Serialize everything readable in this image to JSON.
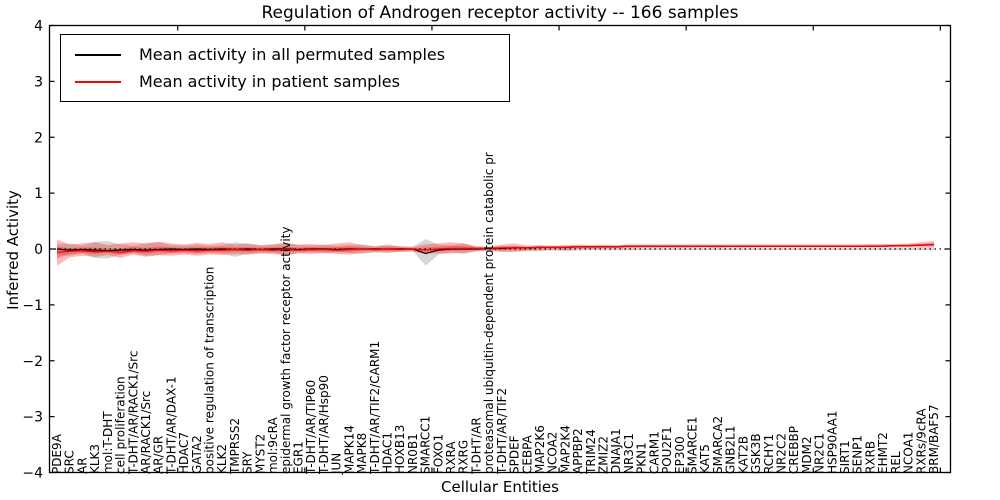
{
  "figure": {
    "title": "Regulation of Androgen receptor activity -- 166 samples",
    "xlabel": "Cellular Entities",
    "ylabel": "Inferred Activity"
  },
  "legend": {
    "items": [
      {
        "label": "Mean activity in all permuted samples",
        "color": "#000000"
      },
      {
        "label": "Mean activity in patient samples",
        "color": "#ff0000"
      }
    ]
  },
  "chart_data": {
    "type": "line",
    "title": "Regulation of Androgen receptor activity -- 166 samples",
    "xlabel": "Cellular Entities",
    "ylabel": "Inferred Activity",
    "ylim": [
      -4,
      4
    ],
    "ytick_values": [
      4,
      3,
      2,
      1,
      0,
      -1,
      -2,
      -3,
      -4
    ],
    "ytick_labels": [
      "4",
      "3",
      "2",
      "1",
      "0",
      "−1",
      "−2",
      "−3",
      "−4"
    ],
    "grid": false,
    "legend_position": "upper left",
    "zero_line": {
      "y": 0,
      "style": "dotted",
      "color": "#000000"
    },
    "categories": [
      "PDE9A",
      "SRC",
      "AR",
      "KLK3",
      "mol:T-DHT",
      "cell proliferation",
      "T-DHT/AR/RACK1/Src",
      "AR/RACK1/Src",
      "AR/GR",
      "T-DHT/AR/DAX-1",
      "HDAC7",
      "GATA2",
      "positive regulation of transcription",
      "KLK2",
      "TMPRSS2",
      "SRY",
      "MYST2",
      "mol:9cRA",
      "epidermal growth factor receptor activity",
      "EGR1",
      "T-DHT/AR/TIP60",
      "T-DHT/AR/Hsp90",
      "JUN",
      "MAPK14",
      "MAPK8",
      "T-DHT/AR/TIF2/CARM1",
      "HDAC1",
      "HOXB13",
      "NR0B1",
      "SMARCC1",
      "FOXO1",
      "RXRA",
      "RXRG",
      "T-DHT/AR",
      "proteasomal ubiquitin-dependent protein catabolic pr",
      "T-DHT/AR/TIF2",
      "SPDEF",
      "CEBPA",
      "MAP2K6",
      "NCOA2",
      "MAP2K4",
      "APPBP2",
      "TRIM24",
      "ZMIZ2",
      "DNAJA1",
      "NR3C1",
      "PKN1",
      "CARM1",
      "POU2F1",
      "EP300",
      "SMARCE1",
      "KAT5",
      "SMARCA2",
      "GNB2L1",
      "KAT2B",
      "GSK3B",
      "RCHY1",
      "NR2C2",
      "CREBBP",
      "MDM2",
      "NR2C1",
      "HSP90AA1",
      "SIRT1",
      "SENP1",
      "RXRB",
      "EHMT2",
      "REL",
      "NCOA1",
      "RXRs/9cRA",
      "BRM/BAF57"
    ],
    "series": [
      {
        "name": "Mean activity in all permuted samples",
        "color": "#000000",
        "style": "solid",
        "values": [
          0,
          -0.02,
          -0.01,
          -0.02,
          -0.03,
          -0.02,
          -0.01,
          -0.02,
          -0.01,
          0,
          -0.01,
          0,
          -0.01,
          0,
          -0.01,
          0,
          -0.01,
          0,
          0,
          -0.01,
          0,
          0,
          -0.01,
          0,
          0,
          0,
          0,
          0,
          0,
          -0.08,
          -0.02,
          0,
          0,
          0,
          0.01,
          0.01,
          0.02,
          0.02,
          0.03,
          0.03,
          0.03,
          0.04,
          0.04,
          0.04,
          0.04,
          0.05,
          0.05,
          0.05,
          0.05,
          0.05,
          0.05,
          0.05,
          0.05,
          0.05,
          0.05,
          0.05,
          0.05,
          0.05,
          0.05,
          0.05,
          0.05,
          0.05,
          0.05,
          0.05,
          0.05,
          0.05,
          0.06,
          0.06,
          0.07,
          0.08
        ]
      },
      {
        "name": "Mean activity in patient samples",
        "color": "#ff0000",
        "style": "solid",
        "values": [
          -0.06,
          -0.04,
          -0.03,
          -0.05,
          -0.04,
          -0.06,
          -0.03,
          -0.04,
          -0.02,
          -0.03,
          -0.02,
          -0.03,
          -0.02,
          -0.02,
          -0.01,
          -0.02,
          -0.01,
          -0.02,
          -0.01,
          -0.02,
          -0.01,
          -0.01,
          -0.02,
          -0.01,
          0,
          -0.01,
          0,
          -0.01,
          0,
          -0.02,
          0,
          0.01,
          0.01,
          0.01,
          0.01,
          0.02,
          0.02,
          0.02,
          0.03,
          0.03,
          0.03,
          0.04,
          0.04,
          0.04,
          0.04,
          0.05,
          0.05,
          0.05,
          0.05,
          0.05,
          0.05,
          0.05,
          0.05,
          0.05,
          0.05,
          0.05,
          0.05,
          0.05,
          0.05,
          0.05,
          0.05,
          0.05,
          0.05,
          0.05,
          0.05,
          0.05,
          0.06,
          0.06,
          0.07,
          0.08
        ]
      }
    ],
    "bands": [
      {
        "name": "permuted samples std band",
        "color": "#808080",
        "opacity": 0.32,
        "upper": [
          0.08,
          0.1,
          0.06,
          0.13,
          0.14,
          0.08,
          0.06,
          0.1,
          0.12,
          0.07,
          0.06,
          0.08,
          0.06,
          0.07,
          0.12,
          0.09,
          0.06,
          0.07,
          0.11,
          0.07,
          0.06,
          0.08,
          0.06,
          0.07,
          0.08,
          0.05,
          0.06,
          0.05,
          0.04,
          0.18,
          0.08,
          0.06,
          0.1,
          0.04,
          0.04,
          0.05,
          0.05,
          0.04,
          0.04,
          0.03,
          0.04,
          0.03,
          0.03,
          0.04,
          0.03,
          0.03,
          0.03,
          0.03,
          0.02,
          0.03,
          0.02,
          0.02,
          0.03,
          0.02,
          0.02,
          0.02,
          0.02,
          0.02,
          0.02,
          0.02,
          0.02,
          0.02,
          0.02,
          0.02,
          0.02,
          0.02,
          0.02,
          0.02,
          0.03,
          0.03
        ],
        "lower": [
          -0.1,
          -0.12,
          -0.08,
          -0.16,
          -0.17,
          -0.1,
          -0.08,
          -0.12,
          -0.11,
          -0.08,
          -0.07,
          -0.09,
          -0.07,
          -0.08,
          -0.14,
          -0.09,
          -0.07,
          -0.07,
          -0.12,
          -0.07,
          -0.06,
          -0.08,
          -0.06,
          -0.07,
          -0.09,
          -0.05,
          -0.06,
          -0.05,
          -0.04,
          -0.3,
          -0.1,
          -0.06,
          -0.09,
          -0.04,
          -0.04,
          -0.05,
          -0.05,
          -0.04,
          -0.04,
          -0.03,
          -0.04,
          -0.03,
          -0.02,
          -0.03,
          -0.02,
          -0.03,
          -0.02,
          -0.02,
          -0.02,
          -0.02,
          -0.02,
          -0.02,
          -0.02,
          -0.02,
          -0.02,
          -0.02,
          -0.02,
          -0.02,
          -0.02,
          -0.02,
          -0.02,
          -0.02,
          -0.02,
          -0.02,
          -0.02,
          -0.02,
          -0.02,
          -0.02,
          -0.02,
          -0.02
        ]
      },
      {
        "name": "patient samples std band",
        "color": "#ff0000",
        "opacity": 0.28,
        "upper": [
          0.17,
          0.08,
          0.1,
          0.12,
          0.07,
          0.1,
          0.12,
          0.1,
          0.13,
          0.1,
          0.08,
          0.11,
          0.09,
          0.12,
          0.08,
          0.1,
          0.07,
          0.09,
          0.11,
          0.08,
          0.09,
          0.07,
          0.1,
          0.12,
          0.07,
          0.05,
          0.08,
          0.05,
          0.04,
          0.08,
          0.1,
          0.12,
          0.1,
          0.05,
          0.04,
          0.08,
          0.1,
          0.06,
          0.07,
          0.06,
          0.07,
          0.08,
          0.07,
          0.08,
          0.07,
          0.08,
          0.08,
          0.08,
          0.08,
          0.08,
          0.08,
          0.08,
          0.08,
          0.08,
          0.08,
          0.08,
          0.08,
          0.08,
          0.08,
          0.08,
          0.08,
          0.08,
          0.08,
          0.08,
          0.09,
          0.09,
          0.09,
          0.1,
          0.12,
          0.14
        ],
        "lower": [
          -0.3,
          -0.15,
          -0.12,
          -0.14,
          -0.11,
          -0.16,
          -0.1,
          -0.14,
          -0.11,
          -0.12,
          -0.1,
          -0.12,
          -0.1,
          -0.11,
          -0.09,
          -0.1,
          -0.08,
          -0.09,
          -0.1,
          -0.08,
          -0.09,
          -0.07,
          -0.09,
          -0.1,
          -0.07,
          -0.06,
          -0.07,
          -0.05,
          -0.05,
          -0.08,
          -0.08,
          -0.08,
          -0.07,
          -0.04,
          -0.03,
          -0.05,
          -0.05,
          -0.03,
          -0.02,
          -0.01,
          -0.02,
          0.0,
          0.0,
          0.01,
          0.01,
          0.01,
          0.02,
          0.02,
          0.02,
          0.02,
          0.02,
          0.03,
          0.02,
          0.03,
          0.02,
          0.03,
          0.03,
          0.03,
          0.03,
          0.03,
          0.03,
          0.03,
          0.03,
          0.03,
          0.03,
          0.03,
          0.03,
          0.03,
          0.03,
          0.03
        ]
      }
    ]
  }
}
